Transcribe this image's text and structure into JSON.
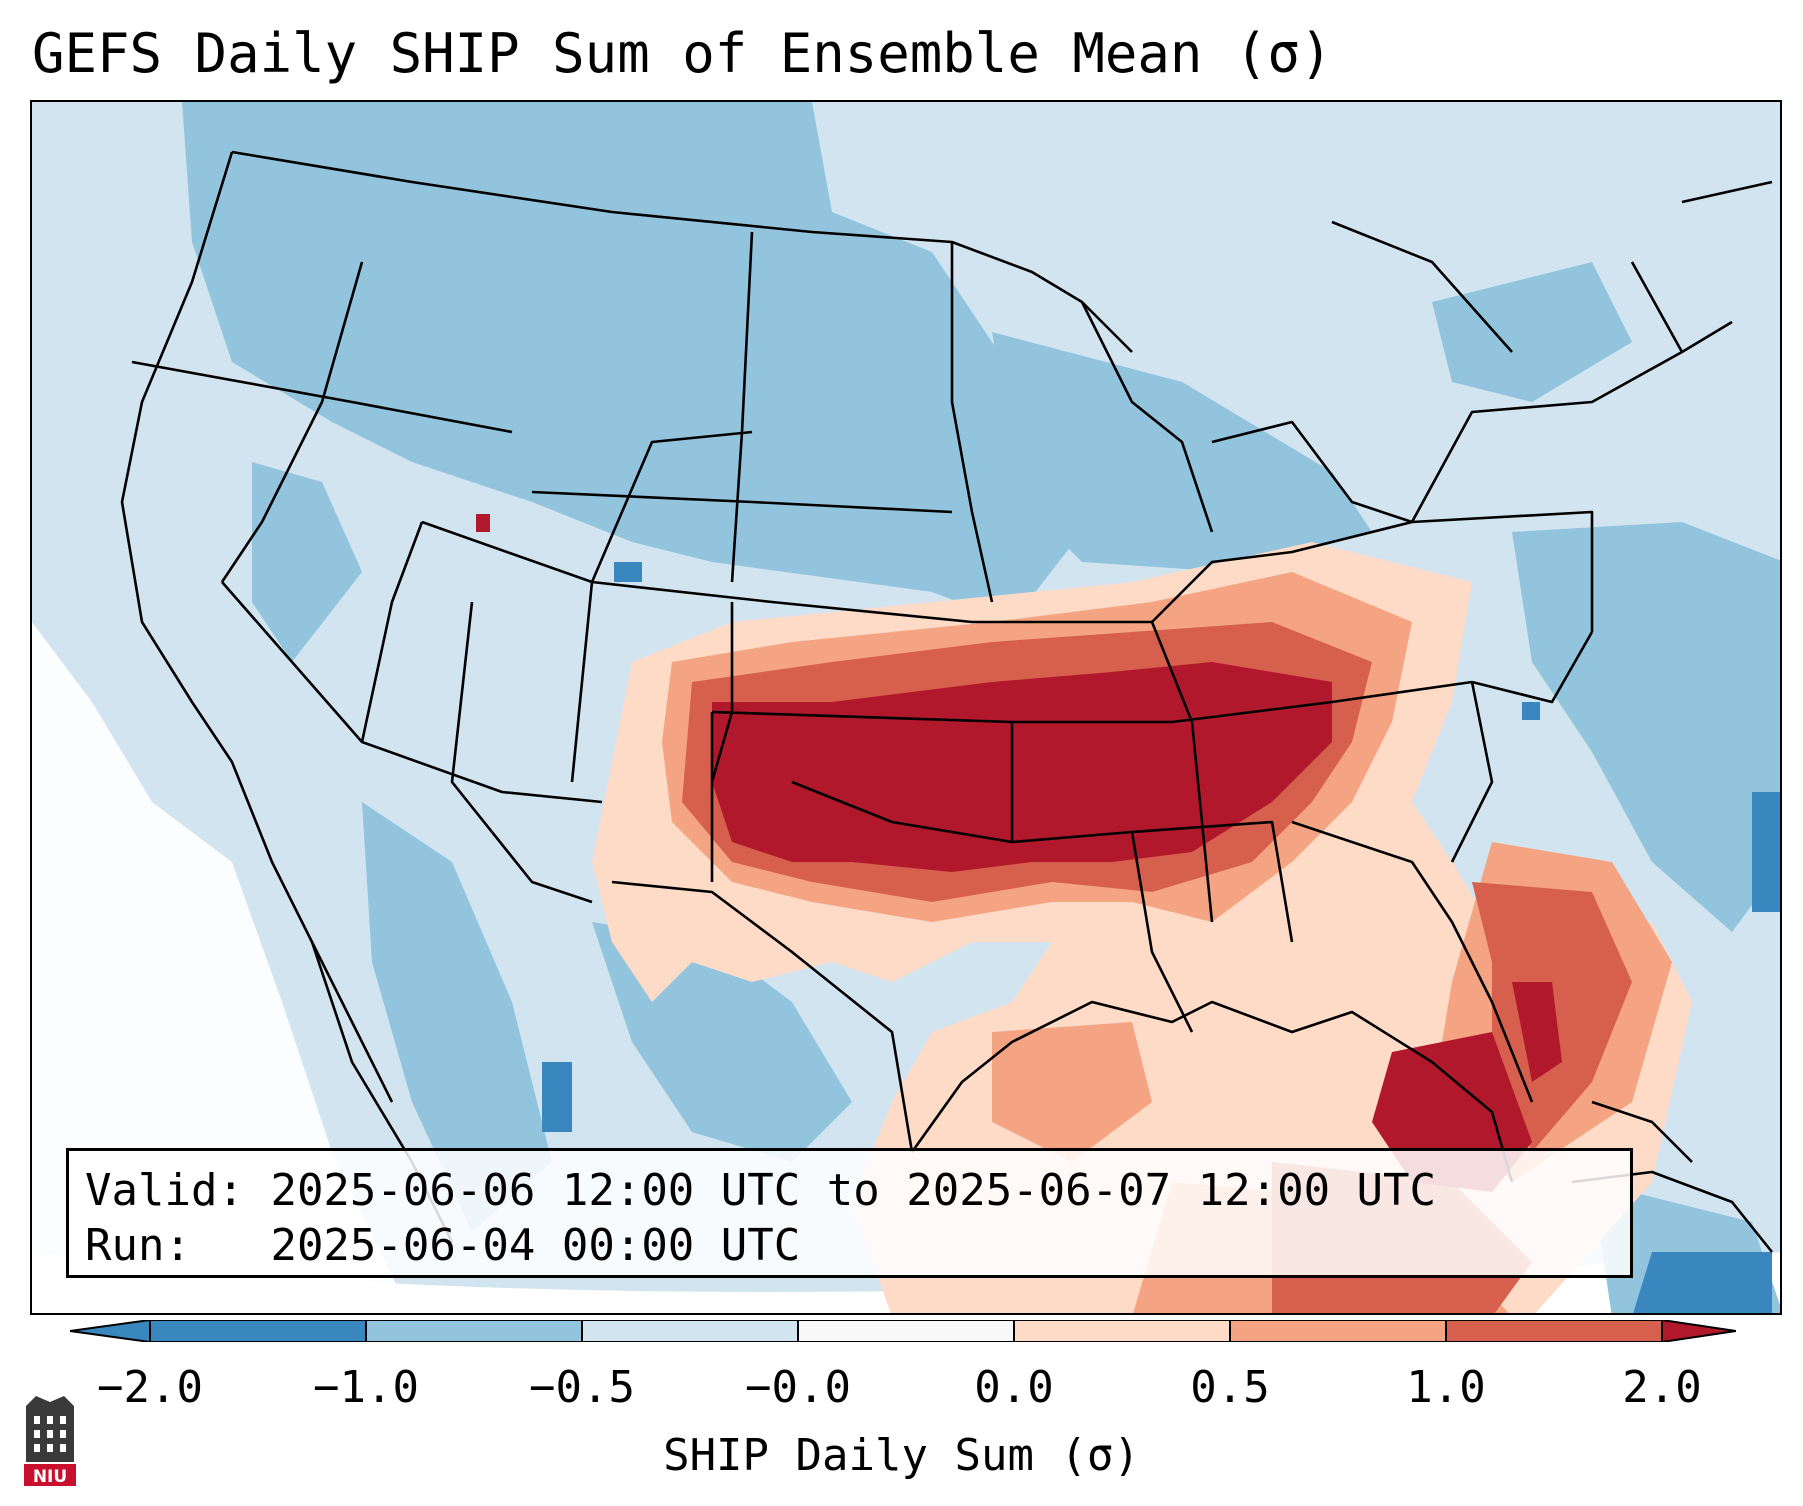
{
  "title": "GEFS Daily SHIP Sum of Ensemble Mean (σ)",
  "info": {
    "valid_label": "Valid:",
    "valid_value": "2025-06-06 12:00 UTC to 2025-06-07 12:00 UTC",
    "run_label": "Run:",
    "run_value": "2025-06-04 00:00 UTC"
  },
  "colorbar": {
    "title": "SHIP Daily Sum (σ)",
    "tick_labels": [
      "−2.0",
      "−1.0",
      "−0.5",
      "−0.0",
      "0.0",
      "0.5",
      "1.0",
      "2.0"
    ],
    "colors": [
      "#3a87c0",
      "#93c4de",
      "#d1e4f0",
      "#f8f8f8",
      "#fddbc7",
      "#f4a482",
      "#d6604d",
      "#b2182b"
    ]
  },
  "map": {
    "region": "Contiguous United States",
    "field": "SHIP daily sum anomaly",
    "max_area": "Southern Plains to Tennessee Valley"
  },
  "logo": {
    "text": "NIU",
    "icon": "university-logo-icon"
  }
}
